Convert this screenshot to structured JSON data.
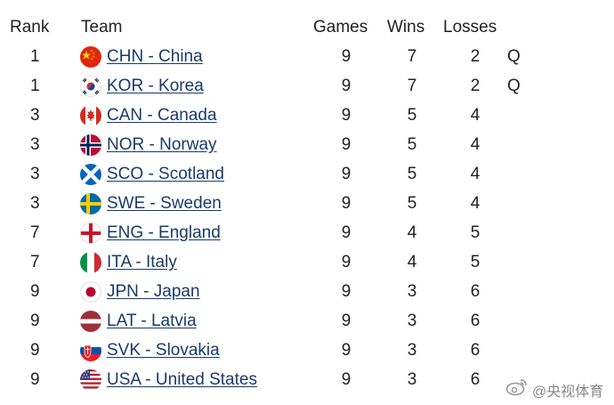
{
  "headers": {
    "rank": "Rank",
    "team": "Team",
    "games": "Games",
    "wins": "Wins",
    "losses": "Losses"
  },
  "rows": [
    {
      "rank": "1",
      "team": "CHN - China",
      "games": "9",
      "wins": "7",
      "losses": "2",
      "q": "Q",
      "flag": "china-flag-icon"
    },
    {
      "rank": "1",
      "team": "KOR - Korea",
      "games": "9",
      "wins": "7",
      "losses": "2",
      "q": "Q",
      "flag": "korea-flag-icon"
    },
    {
      "rank": "3",
      "team": "CAN - Canada",
      "games": "9",
      "wins": "5",
      "losses": "4",
      "q": "",
      "flag": "canada-flag-icon"
    },
    {
      "rank": "3",
      "team": "NOR - Norway",
      "games": "9",
      "wins": "5",
      "losses": "4",
      "q": "",
      "flag": "norway-flag-icon"
    },
    {
      "rank": "3",
      "team": "SCO - Scotland",
      "games": "9",
      "wins": "5",
      "losses": "4",
      "q": "",
      "flag": "scotland-flag-icon"
    },
    {
      "rank": "3",
      "team": "SWE - Sweden",
      "games": "9",
      "wins": "5",
      "losses": "4",
      "q": "",
      "flag": "sweden-flag-icon"
    },
    {
      "rank": "7",
      "team": "ENG - England",
      "games": "9",
      "wins": "4",
      "losses": "5",
      "q": "",
      "flag": "england-flag-icon"
    },
    {
      "rank": "7",
      "team": "ITA - Italy",
      "games": "9",
      "wins": "4",
      "losses": "5",
      "q": "",
      "flag": "italy-flag-icon"
    },
    {
      "rank": "9",
      "team": "JPN - Japan",
      "games": "9",
      "wins": "3",
      "losses": "6",
      "q": "",
      "flag": "japan-flag-icon"
    },
    {
      "rank": "9",
      "team": "LAT - Latvia",
      "games": "9",
      "wins": "3",
      "losses": "6",
      "q": "",
      "flag": "latvia-flag-icon"
    },
    {
      "rank": "9",
      "team": "SVK - Slovakia",
      "games": "9",
      "wins": "3",
      "losses": "6",
      "q": "",
      "flag": "slovakia-flag-icon"
    },
    {
      "rank": "9",
      "team": "USA - United States",
      "games": "9",
      "wins": "3",
      "losses": "6",
      "q": "",
      "flag": "usa-flag-icon"
    }
  ],
  "watermark": {
    "text": "@央视体育",
    "icon": "weibo-icon"
  }
}
